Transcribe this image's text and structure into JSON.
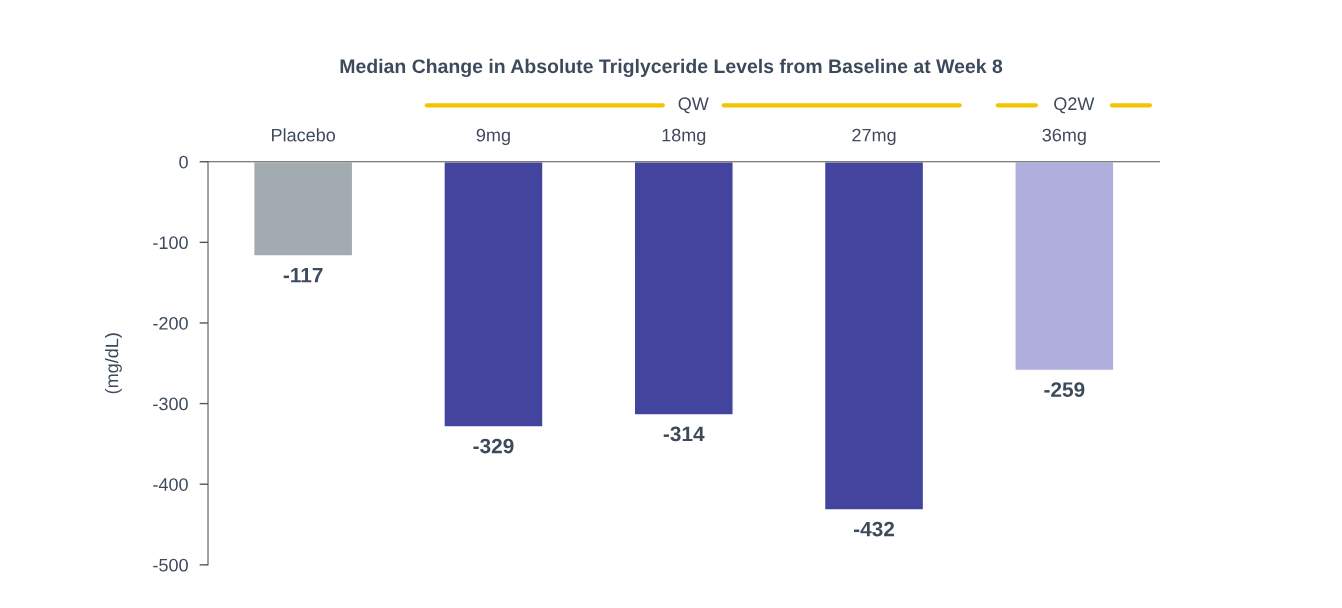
{
  "chart_data": {
    "type": "bar",
    "title": "Median Change in Absolute Triglyceride Levels from Baseline at Week 8",
    "ylabel": "(mg/dL)",
    "categories": [
      "Placebo",
      "9mg",
      "18mg",
      "27mg",
      "36mg"
    ],
    "values": [
      -117,
      -329,
      -314,
      -432,
      -259
    ],
    "colors": [
      "#a2abb0",
      "#43449e",
      "#43449e",
      "#43449e",
      "#b0aedc"
    ],
    "ylim": [
      -500,
      0
    ],
    "yticks": [
      -500,
      -400,
      -300,
      -200,
      -100,
      0
    ],
    "data_labels": true,
    "grid": false,
    "legend": false,
    "annotations": [
      "QW",
      "Q2W"
    ]
  }
}
